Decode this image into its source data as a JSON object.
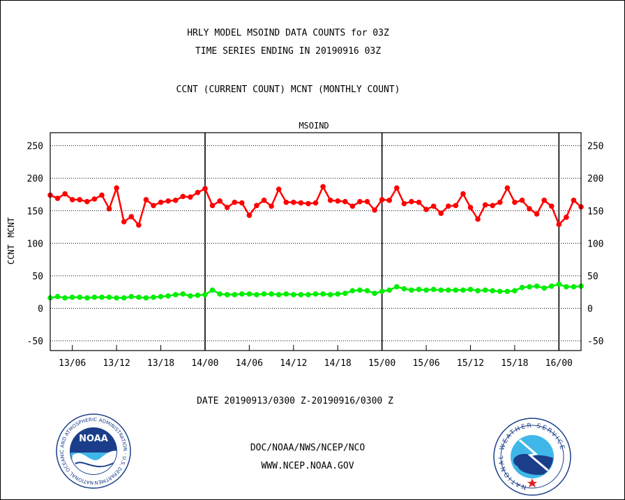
{
  "titles": {
    "line1": "HRLY MODEL MSOIND DATA COUNTS for 03Z",
    "line2": "TIME SERIES ENDING IN 20190916 03Z",
    "line3": "CCNT (CURRENT COUNT) MCNT (MONTHLY COUNT)"
  },
  "date_range": "DATE 20190913/0300 Z-20190916/0300 Z",
  "credit": {
    "org": "DOC/NOAA/NWS/NCEP/NCO",
    "url": "WWW.NCEP.NOAA.GOV",
    "noaa_logo_text": "NOAA",
    "noaa_ring_text": "NATIONAL OCEANIC AND ATMOSPHERIC ADMINISTRATION · U.S. DEPARTMENT OF COMMERCE",
    "nws_ring_text": "NATIONAL WEATHER SERVICE"
  },
  "colors": {
    "ccnt": "#ff0000",
    "mcnt": "#00ee00",
    "title_blue": "#0000cc",
    "date_red": "#ff0000"
  },
  "chart_data": {
    "type": "line",
    "title": "MSOIND",
    "ylabel_ccnt": "CCNT",
    "ylabel_mcnt": "MCNT",
    "ylim": [
      -65,
      270
    ],
    "yticks": [
      -50,
      0,
      50,
      100,
      150,
      200,
      250
    ],
    "grid": true,
    "x_start": "13/03",
    "x_end": "16/03",
    "x_unit": "hourly",
    "xticks": [
      "13/06",
      "13/12",
      "13/18",
      "14/00",
      "14/06",
      "14/12",
      "14/18",
      "15/00",
      "15/06",
      "15/12",
      "15/18",
      "16/00"
    ],
    "day_boundaries": [
      "14/00",
      "15/00",
      "16/00"
    ],
    "series": [
      {
        "name": "CCNT",
        "values": [
          174,
          169,
          176,
          167,
          167,
          164,
          168,
          174,
          153,
          185,
          133,
          141,
          128,
          167,
          158,
          163,
          165,
          166,
          172,
          171,
          178,
          184,
          158,
          165,
          155,
          163,
          162,
          143,
          158,
          166,
          157,
          183,
          163,
          163,
          162,
          161,
          162,
          187,
          166,
          165,
          164,
          157,
          164,
          164,
          151,
          167,
          166,
          185,
          161,
          164,
          163,
          152,
          157,
          146,
          157,
          158,
          176,
          155,
          137,
          159,
          158,
          163,
          185,
          163,
          166,
          153,
          145,
          166,
          157,
          129,
          140,
          166,
          156
        ]
      },
      {
        "name": "MCNT",
        "values": [
          16,
          18,
          16,
          17,
          17,
          16,
          17,
          17,
          17,
          16,
          16,
          18,
          17,
          16,
          17,
          18,
          19,
          21,
          22,
          19,
          20,
          21,
          28,
          22,
          21,
          21,
          22,
          22,
          21,
          22,
          22,
          21,
          22,
          21,
          21,
          21,
          22,
          22,
          21,
          22,
          23,
          27,
          28,
          27,
          23,
          26,
          28,
          33,
          30,
          28,
          29,
          28,
          29,
          28,
          28,
          28,
          28,
          29,
          27,
          28,
          27,
          26,
          26,
          27,
          32,
          33,
          34,
          31,
          34,
          37,
          33,
          33,
          34
        ]
      }
    ]
  }
}
